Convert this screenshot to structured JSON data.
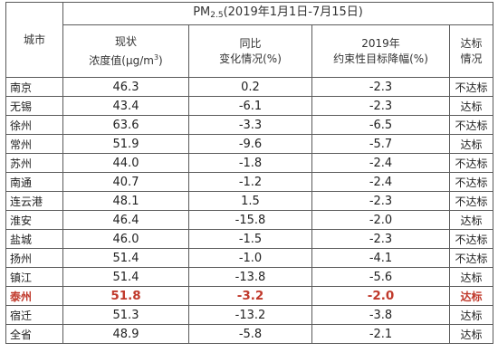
{
  "header": {
    "city": "城市",
    "title_prefix": "PM",
    "title_sub": "2.5",
    "title_suffix": "(2019年1月1日-7月15日)",
    "col_current_line1": "现状",
    "col_current_line2": "浓度值(μg/m",
    "col_current_sup": "3",
    "col_current_close": ")",
    "col_yoy_line1": "同比",
    "col_yoy_line2": "变化情况(%)",
    "col_target_line1": "2019年",
    "col_target_line2": "约束性目标降幅(%)",
    "col_status_line1": "达标",
    "col_status_line2": "情况"
  },
  "rows": [
    {
      "city": "南京",
      "current": "46.3",
      "yoy": "0.2",
      "target": "-2.3",
      "status": "不达标"
    },
    {
      "city": "无锡",
      "current": "43.4",
      "yoy": "-6.1",
      "target": "-2.3",
      "status": "达标"
    },
    {
      "city": "徐州",
      "current": "63.6",
      "yoy": "-3.3",
      "target": "-6.5",
      "status": "不达标"
    },
    {
      "city": "常州",
      "current": "51.9",
      "yoy": "-9.6",
      "target": "-5.7",
      "status": "达标"
    },
    {
      "city": "苏州",
      "current": "44.0",
      "yoy": "-1.8",
      "target": "-2.4",
      "status": "不达标"
    },
    {
      "city": "南通",
      "current": "40.7",
      "yoy": "-1.2",
      "target": "-2.4",
      "status": "不达标"
    },
    {
      "city": "连云港",
      "current": "48.1",
      "yoy": "1.5",
      "target": "-2.3",
      "status": "不达标"
    },
    {
      "city": "淮安",
      "current": "46.4",
      "yoy": "-15.8",
      "target": "-2.0",
      "status": "达标"
    },
    {
      "city": "盐城",
      "current": "46.0",
      "yoy": "-1.5",
      "target": "-2.3",
      "status": "不达标"
    },
    {
      "city": "扬州",
      "current": "51.4",
      "yoy": "-1.0",
      "target": "-4.1",
      "status": "不达标"
    },
    {
      "city": "镇江",
      "current": "51.4",
      "yoy": "-13.8",
      "target": "-5.6",
      "status": "达标"
    },
    {
      "city": "泰州",
      "current": "51.8",
      "yoy": "-3.2",
      "target": "-2.0",
      "status": "达标",
      "highlight": true
    },
    {
      "city": "宿迁",
      "current": "51.3",
      "yoy": "-13.2",
      "target": "-3.8",
      "status": "达标"
    },
    {
      "city": "全省",
      "current": "48.9",
      "yoy": "-5.8",
      "target": "-2.1",
      "status": "达标"
    }
  ],
  "colors": {
    "highlight": "#c0392b",
    "border": "#5a5a5a"
  }
}
